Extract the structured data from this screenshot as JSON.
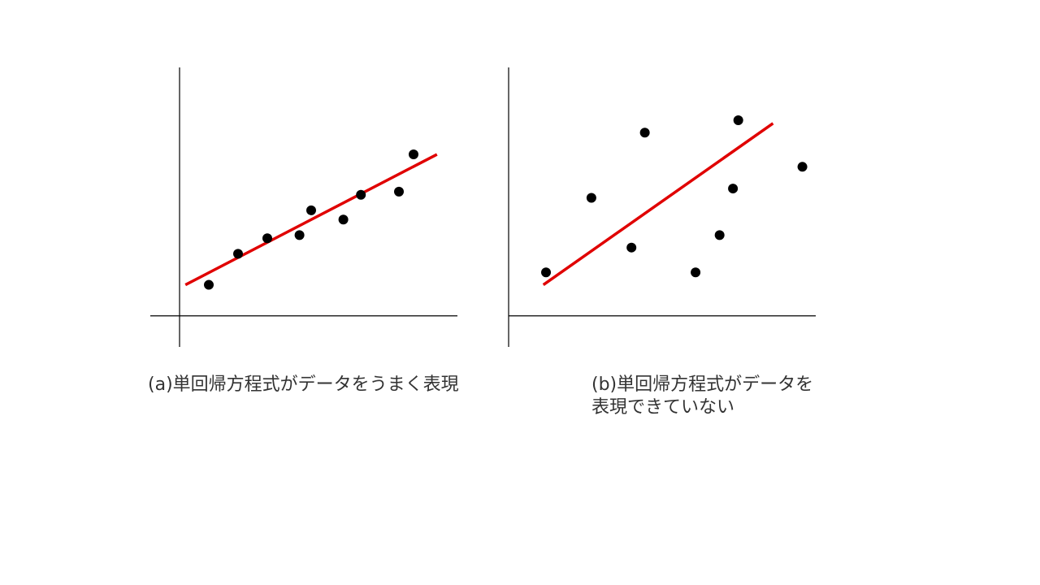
{
  "chart_data": [
    {
      "type": "scatter",
      "caption": "(a)単回帰方程式がデータをうまく表現",
      "points": [
        {
          "x": 1.0,
          "y": 1.0
        },
        {
          "x": 2.0,
          "y": 2.0
        },
        {
          "x": 3.0,
          "y": 2.5
        },
        {
          "x": 4.1,
          "y": 2.6
        },
        {
          "x": 4.5,
          "y": 3.4
        },
        {
          "x": 5.6,
          "y": 3.1
        },
        {
          "x": 6.2,
          "y": 3.9
        },
        {
          "x": 7.5,
          "y": 4.0
        },
        {
          "x": 8.0,
          "y": 5.2
        }
      ],
      "fit_line": {
        "x": [
          0.2,
          8.8
        ],
        "y": [
          1.0,
          5.2
        ]
      },
      "xlim": [
        -1,
        9.5
      ],
      "ylim": [
        -1,
        8
      ],
      "axes_visible": true,
      "grid": false,
      "point_color": "#000000",
      "line_color": "#e00000",
      "axis_color": "#000000"
    },
    {
      "type": "scatter",
      "caption": "(b)単回帰方程式がデータを\n表現できていない",
      "points": [
        {
          "x": 1.4,
          "y": 1.4
        },
        {
          "x": 3.1,
          "y": 3.8
        },
        {
          "x": 4.6,
          "y": 2.2
        },
        {
          "x": 5.1,
          "y": 5.9
        },
        {
          "x": 7.0,
          "y": 1.4
        },
        {
          "x": 7.9,
          "y": 2.6
        },
        {
          "x": 8.4,
          "y": 4.1
        },
        {
          "x": 8.6,
          "y": 6.3
        },
        {
          "x": 11.0,
          "y": 4.8
        }
      ],
      "fit_line": {
        "x": [
          1.3,
          9.9
        ],
        "y": [
          1.0,
          6.2
        ]
      },
      "xlim": [
        0,
        11.5
      ],
      "ylim": [
        -1,
        8
      ],
      "axes_visible": true,
      "grid": false,
      "point_color": "#000000",
      "line_color": "#e00000",
      "axis_color": "#000000"
    }
  ],
  "captions": {
    "a": "(a)単回帰方程式がデータをうまく表現",
    "b_line1": "(b)単回帰方程式がデータを",
    "b_line2": "表現できていない"
  }
}
